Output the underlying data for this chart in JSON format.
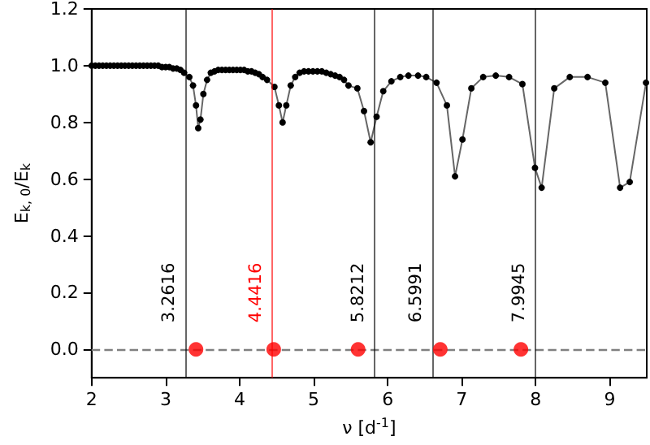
{
  "chart_data": {
    "type": "line",
    "xlabel": "ν [d$^{-1}$]",
    "ylabel": "E$_{k, 0}$/E$_{k}$",
    "xlim": [
      2,
      9.5
    ],
    "xticks": [
      2,
      3,
      4,
      5,
      6,
      7,
      8,
      9
    ],
    "ylim": [
      -0.1,
      1.2
    ],
    "yticks": [
      {
        "value": 0,
        "label": "0.0"
      },
      {
        "value": 0.2,
        "label": "0.2"
      },
      {
        "value": 0.4,
        "label": "0.4"
      },
      {
        "value": 0.6,
        "label": "0.6"
      },
      {
        "value": 0.8,
        "label": "0.8"
      },
      {
        "value": 1,
        "label": "1.0"
      },
      {
        "value": 1.2,
        "label": "1.2"
      }
    ],
    "grid": false,
    "series": [
      {
        "color": "#000000",
        "marker": "circle",
        "line_style": "solid",
        "x": [
          2,
          2.05,
          2.1,
          2.15,
          2.2,
          2.25,
          2.3,
          2.35,
          2.4,
          2.45,
          2.5,
          2.55,
          2.6,
          2.65,
          2.7,
          2.75,
          2.8,
          2.85,
          2.9,
          2.95,
          3,
          3.05,
          3.1,
          3.15,
          3.2,
          3.25,
          3.32,
          3.37,
          3.41,
          3.44,
          3.47,
          3.51,
          3.56,
          3.61,
          3.66,
          3.71,
          3.76,
          3.81,
          3.86,
          3.91,
          3.96,
          4.01,
          4.06,
          4.11,
          4.16,
          4.21,
          4.26,
          4.31,
          4.37,
          4.47,
          4.53,
          4.58,
          4.63,
          4.69,
          4.75,
          4.81,
          4.87,
          4.93,
          4.99,
          5.05,
          5.11,
          5.17,
          5.23,
          5.29,
          5.35,
          5.41,
          5.47,
          5.59,
          5.68,
          5.77,
          5.85,
          5.94,
          6.05,
          6.17,
          6.28,
          6.41,
          6.52,
          6.66,
          6.8,
          6.91,
          7.01,
          7.13,
          7.29,
          7.46,
          7.64,
          7.82,
          7.99,
          8.08,
          8.25,
          8.46,
          8.7,
          8.94,
          9.14,
          9.27,
          9.49
        ],
        "values": [
          1,
          1,
          1,
          1,
          1,
          1,
          1,
          1,
          1,
          1,
          1,
          1,
          1,
          1,
          1,
          1,
          1,
          1,
          1,
          0.995,
          0.995,
          0.995,
          0.99,
          0.99,
          0.985,
          0.975,
          0.96,
          0.93,
          0.86,
          0.78,
          0.81,
          0.9,
          0.95,
          0.975,
          0.98,
          0.985,
          0.985,
          0.985,
          0.985,
          0.985,
          0.985,
          0.985,
          0.985,
          0.98,
          0.98,
          0.975,
          0.97,
          0.96,
          0.95,
          0.925,
          0.86,
          0.8,
          0.86,
          0.93,
          0.96,
          0.975,
          0.98,
          0.98,
          0.98,
          0.98,
          0.98,
          0.975,
          0.97,
          0.965,
          0.96,
          0.95,
          0.93,
          0.92,
          0.84,
          0.73,
          0.82,
          0.91,
          0.945,
          0.96,
          0.965,
          0.965,
          0.96,
          0.94,
          0.86,
          0.61,
          0.74,
          0.92,
          0.96,
          0.965,
          0.96,
          0.935,
          0.64,
          0.57,
          0.92,
          0.96,
          0.96,
          0.94,
          0.57,
          0.59,
          0.94
        ]
      },
      {
        "type": "scatter",
        "color": "#ff0000",
        "marker": "circle",
        "x": [
          3.41,
          4.46,
          5.6,
          6.71,
          7.8
        ],
        "values": [
          0,
          0,
          0,
          0,
          0
        ]
      }
    ],
    "ref_lines": [
      {
        "axis": "y",
        "value": 0,
        "color": "#808080",
        "line_style": "dashed"
      },
      {
        "axis": "x",
        "value": 3.2616,
        "label": "3.2616",
        "color": "#000000"
      },
      {
        "axis": "x",
        "value": 4.4416,
        "label": "4.4416",
        "color": "#ff0000"
      },
      {
        "axis": "x",
        "value": 5.8212,
        "label": "5.8212",
        "color": "#000000"
      },
      {
        "axis": "x",
        "value": 6.5991,
        "label": "6.5991",
        "color": "#000000"
      },
      {
        "axis": "x",
        "value": 7.9945,
        "label": "7.9945",
        "color": "#000000"
      }
    ]
  }
}
